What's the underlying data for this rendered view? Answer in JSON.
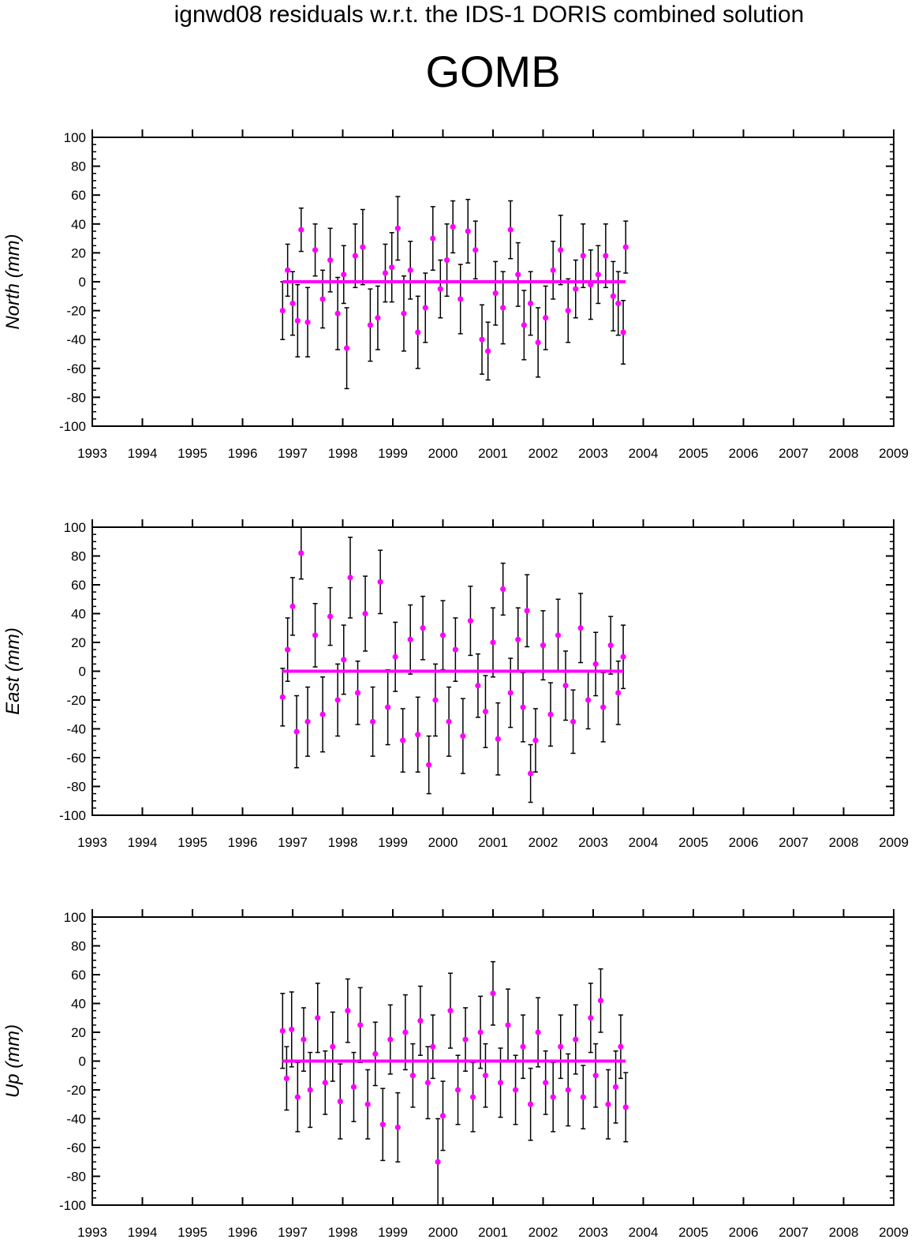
{
  "header": {
    "suptitle": "ignwd08 residuals w.r.t. the IDS-1 DORIS combined solution",
    "station": "GOMB"
  },
  "colors": {
    "points": "#ff00ff",
    "errorbars": "#000000",
    "axes": "#000000"
  },
  "chart_data": [
    {
      "type": "scatter",
      "ylabel": "North (mm)",
      "xlim": [
        1993,
        2009
      ],
      "ylim": [
        -100,
        100
      ],
      "xticks": [
        "1993",
        "1994",
        "1995",
        "1996",
        "1997",
        "1998",
        "1999",
        "2000",
        "2001",
        "2002",
        "2003",
        "2004",
        "2005",
        "2006",
        "2007",
        "2008",
        "2009"
      ],
      "yticks": [
        "100",
        "80",
        "60",
        "40",
        "20",
        "0",
        "-20",
        "-40",
        "-60",
        "-80",
        "-100"
      ],
      "errorbars": true,
      "series": [
        {
          "x": [
            1996.8,
            1996.9,
            1997.0,
            1997.1,
            1997.17,
            1997.3,
            1997.45,
            1997.6,
            1997.75,
            1997.9,
            1998.02,
            1998.08,
            1998.25,
            1998.4,
            1998.55,
            1998.7,
            1998.85,
            1998.98,
            1999.1,
            1999.22,
            1999.35,
            1999.5,
            1999.65,
            1999.8,
            1999.95,
            2000.08,
            2000.2,
            2000.35,
            2000.5,
            2000.65,
            2000.78,
            2000.9,
            2001.05,
            2001.2,
            2001.35,
            2001.5,
            2001.62,
            2001.75,
            2001.9,
            2002.05,
            2002.2,
            2002.35,
            2002.5,
            2002.65,
            2002.8,
            2002.95,
            2003.1,
            2003.25,
            2003.4,
            2003.5,
            2003.6,
            2003.65
          ],
          "y": [
            -20,
            8,
            -15,
            -27,
            36,
            -28,
            22,
            -12,
            15,
            -22,
            5,
            -46,
            18,
            24,
            -30,
            -25,
            6,
            10,
            37,
            -22,
            8,
            -35,
            -18,
            30,
            -5,
            15,
            38,
            -12,
            35,
            22,
            -40,
            -48,
            -8,
            -18,
            36,
            5,
            -30,
            -15,
            -42,
            -25,
            8,
            22,
            -20,
            -5,
            18,
            -2,
            5,
            18,
            -10,
            -15,
            -35,
            24
          ],
          "err": [
            20,
            18,
            22,
            25,
            15,
            24,
            18,
            20,
            22,
            25,
            20,
            28,
            22,
            26,
            25,
            22,
            20,
            24,
            22,
            26,
            20,
            25,
            24,
            22,
            20,
            25,
            18,
            24,
            22,
            20,
            24,
            20,
            22,
            25,
            20,
            22,
            24,
            22,
            24,
            22,
            20,
            24,
            22,
            20,
            22,
            24,
            20,
            22,
            24,
            22,
            22,
            18
          ]
        }
      ]
    },
    {
      "type": "scatter",
      "ylabel": "East (mm)",
      "xlim": [
        1993,
        2009
      ],
      "ylim": [
        -100,
        100
      ],
      "xticks": [
        "1993",
        "1994",
        "1995",
        "1996",
        "1997",
        "1998",
        "1999",
        "2000",
        "2001",
        "2002",
        "2003",
        "2004",
        "2005",
        "2006",
        "2007",
        "2008",
        "2009"
      ],
      "yticks": [
        "100",
        "80",
        "60",
        "40",
        "20",
        "0",
        "-20",
        "-40",
        "-60",
        "-80",
        "-100"
      ],
      "errorbars": true,
      "series": [
        {
          "x": [
            1996.8,
            1996.9,
            1997.0,
            1997.08,
            1997.17,
            1997.3,
            1997.45,
            1997.6,
            1997.75,
            1997.9,
            1998.02,
            1998.15,
            1998.3,
            1998.45,
            1998.6,
            1998.75,
            1998.9,
            1999.05,
            1999.2,
            1999.35,
            1999.5,
            1999.6,
            1999.72,
            1999.85,
            2000.0,
            2000.12,
            2000.25,
            2000.4,
            2000.55,
            2000.7,
            2000.85,
            2001.0,
            2001.1,
            2001.2,
            2001.35,
            2001.5,
            2001.6,
            2001.68,
            2001.75,
            2001.85,
            2002.0,
            2002.15,
            2002.3,
            2002.45,
            2002.6,
            2002.75,
            2002.9,
            2003.05,
            2003.2,
            2003.35,
            2003.5,
            2003.6
          ],
          "y": [
            -18,
            15,
            45,
            -42,
            82,
            -35,
            25,
            -30,
            38,
            -20,
            8,
            65,
            -15,
            40,
            -35,
            62,
            -25,
            10,
            -48,
            22,
            -44,
            30,
            -65,
            -20,
            25,
            -35,
            15,
            -45,
            35,
            -10,
            -28,
            20,
            -47,
            57,
            -15,
            22,
            -25,
            42,
            -71,
            -48,
            18,
            -30,
            25,
            -10,
            -35,
            30,
            -20,
            5,
            -25,
            18,
            -15,
            10
          ],
          "err": [
            20,
            22,
            20,
            25,
            18,
            24,
            22,
            26,
            20,
            25,
            24,
            28,
            22,
            26,
            24,
            22,
            26,
            24,
            22,
            24,
            26,
            22,
            20,
            25,
            24,
            24,
            22,
            26,
            24,
            22,
            25,
            24,
            25,
            18,
            24,
            22,
            24,
            25,
            20,
            22,
            24,
            22,
            25,
            24,
            22,
            24,
            20,
            22,
            24,
            20,
            22,
            22
          ]
        }
      ]
    },
    {
      "type": "scatter",
      "ylabel": "Up (mm)",
      "xlim": [
        1993,
        2009
      ],
      "ylim": [
        -100,
        100
      ],
      "xticks": [
        "1993",
        "1994",
        "1995",
        "1996",
        "1997",
        "1998",
        "1999",
        "2000",
        "2001",
        "2002",
        "2003",
        "2004",
        "2005",
        "2006",
        "2007",
        "2008",
        "2009"
      ],
      "yticks": [
        "100",
        "80",
        "60",
        "40",
        "20",
        "0",
        "-20",
        "-40",
        "-60",
        "-80",
        "-100"
      ],
      "errorbars": true,
      "series": [
        {
          "x": [
            1996.8,
            1996.88,
            1996.98,
            1997.1,
            1997.22,
            1997.35,
            1997.5,
            1997.65,
            1997.8,
            1997.95,
            1998.1,
            1998.22,
            1998.35,
            1998.5,
            1998.65,
            1998.8,
            1998.95,
            1999.1,
            1999.25,
            1999.4,
            1999.55,
            1999.7,
            1999.8,
            1999.9,
            2000.0,
            2000.15,
            2000.3,
            2000.45,
            2000.6,
            2000.75,
            2000.85,
            2001.0,
            2001.15,
            2001.3,
            2001.45,
            2001.6,
            2001.75,
            2001.9,
            2002.05,
            2002.2,
            2002.35,
            2002.5,
            2002.65,
            2002.8,
            2002.95,
            2003.05,
            2003.15,
            2003.3,
            2003.45,
            2003.55,
            2003.65
          ],
          "y": [
            21,
            -12,
            22,
            -25,
            15,
            -20,
            30,
            -15,
            10,
            -28,
            35,
            -18,
            25,
            -30,
            5,
            -44,
            15,
            -46,
            20,
            -10,
            28,
            -15,
            10,
            -70,
            -38,
            35,
            -20,
            15,
            -25,
            20,
            -10,
            47,
            -15,
            25,
            -20,
            10,
            -30,
            20,
            -15,
            -25,
            10,
            -20,
            15,
            -25,
            30,
            -10,
            42,
            -30,
            -18,
            10,
            -32
          ],
          "err": [
            26,
            22,
            26,
            24,
            22,
            26,
            24,
            22,
            24,
            26,
            22,
            24,
            26,
            24,
            22,
            25,
            24,
            24,
            26,
            22,
            24,
            25,
            22,
            30,
            24,
            26,
            24,
            22,
            24,
            25,
            22,
            22,
            24,
            25,
            24,
            22,
            25,
            24,
            22,
            24,
            22,
            25,
            24,
            22,
            24,
            22,
            22,
            24,
            25,
            22,
            24
          ]
        }
      ]
    }
  ]
}
